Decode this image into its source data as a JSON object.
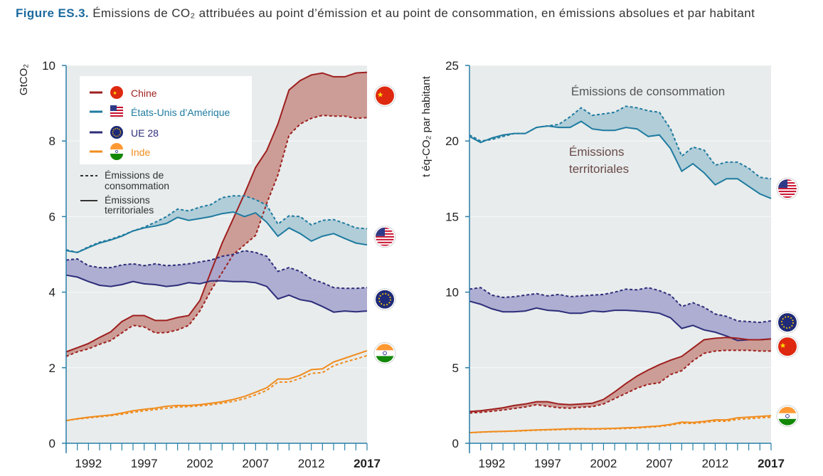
{
  "caption": {
    "label": "Figure ES.3.",
    "text": "Émissions de CO₂ attribuées au point d’émission et au point de consommation, en émissions absolues et par habitant"
  },
  "years": [
    1990,
    1991,
    1992,
    1993,
    1994,
    1995,
    1996,
    1997,
    1998,
    1999,
    2000,
    2001,
    2002,
    2003,
    2004,
    2005,
    2006,
    2007,
    2008,
    2009,
    2010,
    2011,
    2012,
    2013,
    2014,
    2015,
    2016,
    2017
  ],
  "colors": {
    "chine": "#9e1f1f",
    "chine_fill": "#c9958d",
    "usa": "#1f7ba0",
    "usa_fill": "#aacad6",
    "ue": "#2d2d7a",
    "ue_fill": "#a7a7cf",
    "inde": "#f08c1e",
    "plot_bg": "#e8ecec",
    "grid": "#ffffff",
    "axis": "#2a7fa8"
  },
  "legend": {
    "items": [
      {
        "key": "chine",
        "label": "Chine",
        "icon": "china-flag-icon"
      },
      {
        "key": "usa",
        "label": "États-Unis d’Amérique",
        "icon": "usa-flag-icon"
      },
      {
        "key": "ue",
        "label": "UE 28",
        "icon": "eu-flag-icon"
      },
      {
        "key": "inde",
        "label": "Inde",
        "icon": "india-flag-icon"
      }
    ],
    "dashed_label_1": "Émissions de",
    "dashed_label_2": "consommation",
    "solid_label_1": "Émissions",
    "solid_label_2": "territoriales"
  },
  "chart_data": [
    {
      "type": "line",
      "ylabel": "GtCO₂",
      "ylim": [
        0,
        10
      ],
      "yticks": [
        0,
        2,
        4,
        6,
        8,
        10
      ],
      "xticks": [
        "1992",
        "1997",
        "2002",
        "2007",
        "2012",
        "2017"
      ],
      "grid": false,
      "legend_position": "top-left",
      "series": [
        {
          "name": "Chine",
          "kind": "territoriales",
          "values": [
            2.42,
            2.53,
            2.64,
            2.8,
            2.95,
            3.22,
            3.38,
            3.38,
            3.25,
            3.25,
            3.33,
            3.38,
            3.78,
            4.55,
            5.3,
            5.95,
            6.6,
            7.3,
            7.75,
            8.45,
            9.35,
            9.6,
            9.75,
            9.8,
            9.7,
            9.7,
            9.8,
            9.82
          ]
        },
        {
          "name": "Chine",
          "kind": "consommation",
          "values": [
            2.3,
            2.42,
            2.5,
            2.62,
            2.72,
            2.92,
            3.12,
            3.08,
            2.92,
            2.93,
            3.0,
            3.12,
            3.5,
            4.05,
            4.52,
            5.0,
            5.25,
            5.5,
            6.35,
            7.1,
            8.15,
            8.45,
            8.6,
            8.68,
            8.66,
            8.66,
            8.6,
            8.62
          ]
        },
        {
          "name": "États-Unis d’Amérique",
          "kind": "territoriales",
          "values": [
            5.1,
            5.05,
            5.18,
            5.3,
            5.38,
            5.48,
            5.62,
            5.7,
            5.75,
            5.82,
            5.98,
            5.9,
            5.95,
            6.0,
            6.08,
            6.12,
            6.0,
            6.1,
            5.85,
            5.48,
            5.7,
            5.55,
            5.35,
            5.48,
            5.55,
            5.42,
            5.3,
            5.25
          ]
        },
        {
          "name": "États-Unis d’Amérique",
          "kind": "consommation",
          "values": [
            5.12,
            5.05,
            5.2,
            5.32,
            5.4,
            5.5,
            5.62,
            5.72,
            5.85,
            6.0,
            6.2,
            6.15,
            6.25,
            6.32,
            6.5,
            6.55,
            6.55,
            6.45,
            6.3,
            5.8,
            6.02,
            6.0,
            5.78,
            5.9,
            5.92,
            5.82,
            5.7,
            5.68
          ]
        },
        {
          "name": "UE 28",
          "kind": "territoriales",
          "values": [
            4.45,
            4.4,
            4.28,
            4.18,
            4.15,
            4.2,
            4.28,
            4.22,
            4.2,
            4.15,
            4.18,
            4.25,
            4.22,
            4.3,
            4.3,
            4.28,
            4.28,
            4.25,
            4.15,
            3.82,
            3.92,
            3.8,
            3.75,
            3.62,
            3.47,
            3.5,
            3.48,
            3.5
          ]
        },
        {
          "name": "UE 28",
          "kind": "consommation",
          "values": [
            4.85,
            4.88,
            4.7,
            4.65,
            4.65,
            4.72,
            4.75,
            4.7,
            4.75,
            4.7,
            4.72,
            4.75,
            4.8,
            4.85,
            4.95,
            5.0,
            5.1,
            5.05,
            4.95,
            4.55,
            4.65,
            4.55,
            4.35,
            4.25,
            4.12,
            4.1,
            4.1,
            4.12
          ]
        },
        {
          "name": "Inde",
          "kind": "territoriales",
          "values": [
            0.6,
            0.65,
            0.69,
            0.72,
            0.75,
            0.8,
            0.86,
            0.9,
            0.93,
            0.98,
            1.0,
            1.0,
            1.02,
            1.06,
            1.1,
            1.16,
            1.24,
            1.35,
            1.47,
            1.7,
            1.7,
            1.8,
            1.95,
            1.97,
            2.15,
            2.25,
            2.35,
            2.45
          ]
        },
        {
          "name": "Inde",
          "kind": "consommation",
          "values": [
            0.6,
            0.64,
            0.67,
            0.7,
            0.73,
            0.77,
            0.82,
            0.86,
            0.89,
            0.93,
            0.96,
            0.97,
            0.99,
            1.02,
            1.06,
            1.11,
            1.18,
            1.28,
            1.4,
            1.62,
            1.62,
            1.72,
            1.85,
            1.87,
            2.05,
            2.15,
            2.23,
            2.32
          ]
        }
      ]
    },
    {
      "type": "line",
      "ylabel": "t éq-CO₂ par habitant",
      "ylim": [
        0,
        25
      ],
      "yticks": [
        0,
        5,
        10,
        15,
        20,
        25
      ],
      "xticks": [
        "1992",
        "1997",
        "2002",
        "2007",
        "2012",
        "2017"
      ],
      "grid": false,
      "annotations": [
        "Émissions de consommation",
        "Émissions territoriales"
      ],
      "series": [
        {
          "name": "États-Unis d’Amérique",
          "kind": "territoriales",
          "values": [
            20.3,
            19.9,
            20.2,
            20.4,
            20.5,
            20.5,
            20.9,
            21.0,
            20.9,
            20.9,
            21.3,
            20.8,
            20.7,
            20.7,
            20.9,
            20.8,
            20.3,
            20.4,
            19.5,
            18.0,
            18.5,
            17.9,
            17.1,
            17.5,
            17.5,
            17.0,
            16.5,
            16.2
          ]
        },
        {
          "name": "États-Unis d’Amérique",
          "kind": "consommation",
          "values": [
            20.4,
            20.0,
            20.1,
            20.3,
            20.5,
            20.5,
            20.9,
            21.0,
            21.1,
            21.6,
            22.2,
            21.7,
            21.8,
            21.9,
            22.3,
            22.2,
            22.0,
            21.9,
            20.8,
            19.0,
            19.6,
            19.4,
            18.4,
            18.6,
            18.6,
            18.2,
            17.6,
            17.5
          ]
        },
        {
          "name": "UE 28",
          "kind": "territoriales",
          "values": [
            9.4,
            9.2,
            8.9,
            8.7,
            8.7,
            8.75,
            8.95,
            8.8,
            8.75,
            8.6,
            8.6,
            8.75,
            8.7,
            8.8,
            8.8,
            8.75,
            8.7,
            8.6,
            8.3,
            7.6,
            7.8,
            7.5,
            7.35,
            7.1,
            6.8,
            6.85,
            6.85,
            6.9
          ]
        },
        {
          "name": "UE 28",
          "kind": "consommation",
          "values": [
            10.2,
            10.3,
            9.8,
            9.65,
            9.7,
            9.8,
            9.9,
            9.75,
            9.85,
            9.7,
            9.75,
            9.8,
            9.85,
            10.0,
            10.2,
            10.15,
            10.3,
            10.1,
            9.8,
            9.05,
            9.3,
            9.0,
            8.55,
            8.4,
            8.1,
            8.05,
            8.0,
            8.1
          ]
        },
        {
          "name": "Chine",
          "kind": "territoriales",
          "values": [
            2.1,
            2.15,
            2.25,
            2.35,
            2.5,
            2.6,
            2.75,
            2.75,
            2.6,
            2.55,
            2.6,
            2.65,
            2.9,
            3.4,
            3.95,
            4.45,
            4.85,
            5.2,
            5.5,
            5.75,
            6.3,
            6.85,
            6.95,
            7.0,
            6.95,
            6.85,
            6.85,
            6.9
          ]
        },
        {
          "name": "Chine",
          "kind": "consommation",
          "values": [
            2.0,
            2.05,
            2.12,
            2.2,
            2.3,
            2.4,
            2.55,
            2.45,
            2.35,
            2.32,
            2.38,
            2.42,
            2.6,
            2.95,
            3.3,
            3.65,
            3.9,
            4.0,
            4.55,
            4.8,
            5.45,
            5.95,
            6.1,
            6.15,
            6.15,
            6.15,
            6.1,
            6.1
          ]
        },
        {
          "name": "Inde",
          "kind": "territoriales",
          "values": [
            0.7,
            0.74,
            0.77,
            0.79,
            0.81,
            0.85,
            0.88,
            0.91,
            0.93,
            0.96,
            0.97,
            0.96,
            0.97,
            0.99,
            1.02,
            1.05,
            1.1,
            1.15,
            1.25,
            1.4,
            1.38,
            1.45,
            1.55,
            1.55,
            1.68,
            1.73,
            1.78,
            1.82
          ]
        },
        {
          "name": "Inde",
          "kind": "consommation",
          "values": [
            0.7,
            0.73,
            0.76,
            0.78,
            0.8,
            0.83,
            0.86,
            0.88,
            0.9,
            0.92,
            0.93,
            0.93,
            0.94,
            0.96,
            0.98,
            1.01,
            1.06,
            1.11,
            1.2,
            1.33,
            1.31,
            1.38,
            1.46,
            1.46,
            1.58,
            1.63,
            1.68,
            1.72
          ]
        }
      ]
    }
  ]
}
